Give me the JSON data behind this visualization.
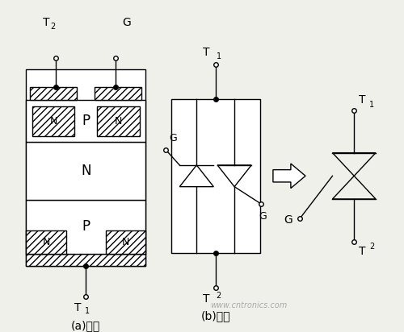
{
  "bg_color": "#f0f0ea",
  "line_color": "#000000",
  "title_a": "(a)结构",
  "title_b": "(b)电路",
  "watermark": "www.cntronics.com"
}
